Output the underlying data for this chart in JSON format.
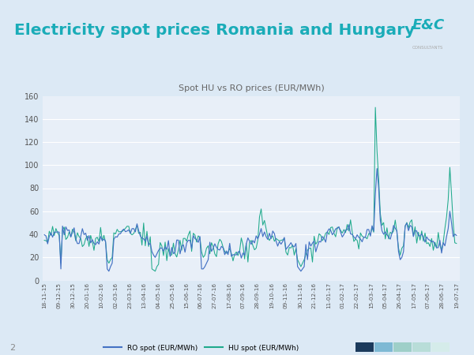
{
  "title": "Electricity spot prices Romania and Hungary",
  "subtitle": "Spot HU vs RO prices (EUR/MWh)",
  "legend_ro": "RO spot (EUR/MWh)",
  "legend_hu": "HU spot (EUR/MWh)",
  "ro_color": "#4472C4",
  "hu_color": "#1fAA8C",
  "bg_color": "#DCE9F5",
  "plot_bg": "#E8EFF8",
  "title_color": "#1AACB8",
  "subtitle_color": "#666666",
  "ylim": [
    0,
    160
  ],
  "yticks": [
    0,
    20,
    40,
    60,
    80,
    100,
    120,
    140,
    160
  ],
  "xtick_labels": [
    "18-11-15",
    "09-12-15",
    "30-12-15",
    "20-01-16",
    "10-02-16",
    "02-03-16",
    "23-03-16",
    "13-04-16",
    "04-05-16",
    "25-05-16",
    "15-06-16",
    "06-07-16",
    "27-07-16",
    "17-08-16",
    "07-09-16",
    "28-09-16",
    "19-10-16",
    "09-11-16",
    "30-11-16",
    "21-12-16",
    "11-01-17",
    "01-02-17",
    "22-02-17",
    "15-03-17",
    "05-04-17",
    "26-04-17",
    "17-05-17",
    "07-06-17",
    "28-06-17",
    "19-07-17"
  ],
  "footer_label": "2",
  "ec_logo_color": "#1AACB8",
  "consultants_color": "#AAAAAA",
  "square_colors": [
    "#1B3A5C",
    "#7EB9D4",
    "#9ECFC8",
    "#B8DDD8",
    "#D5ECEA"
  ]
}
